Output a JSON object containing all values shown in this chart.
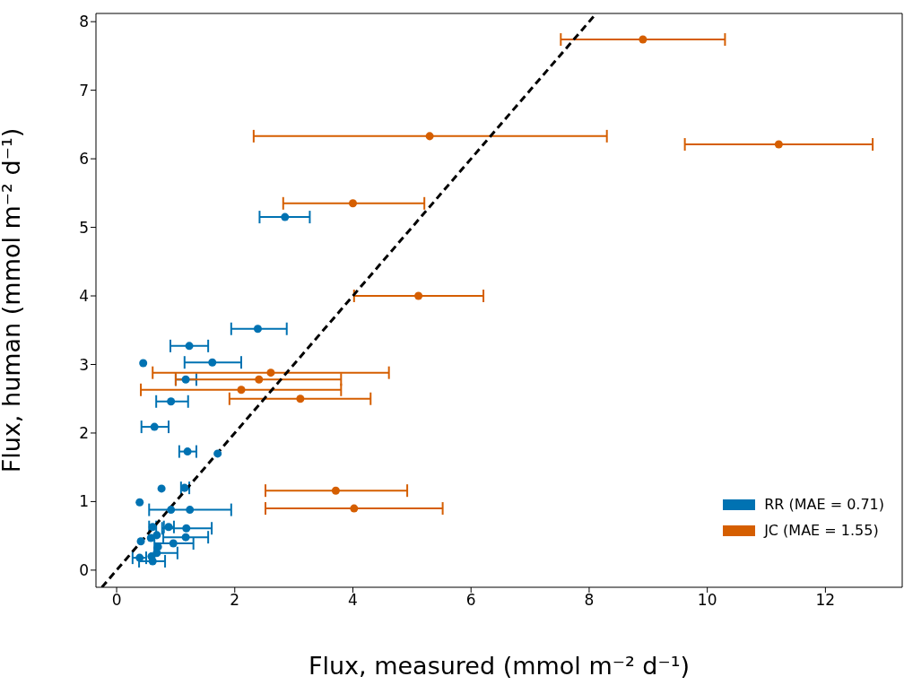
{
  "chart_data": {
    "type": "scatter",
    "xlabel": "Flux, measured (mmol m⁻² d⁻¹)",
    "ylabel": "Flux, human (mmol m⁻² d⁻¹)",
    "xlim": [
      -0.35,
      13.3
    ],
    "ylim": [
      -0.25,
      8.12
    ],
    "xticks": [
      0,
      2,
      4,
      6,
      8,
      10,
      12
    ],
    "yticks": [
      0,
      1,
      2,
      3,
      4,
      5,
      6,
      7,
      8
    ],
    "legend": "bottom right",
    "marker": "circle",
    "series": [
      {
        "name": "RR (MAE = 0.71)",
        "color": "#0072b2",
        "x": [
          2.85,
          2.39,
          1.23,
          0.45,
          1.62,
          1.17,
          0.92,
          0.64,
          1.2,
          1.71,
          0.76,
          1.15,
          0.39,
          0.92,
          1.24,
          0.61,
          0.88,
          1.18,
          1.17,
          0.68,
          0.41,
          0.58,
          0.96,
          0.7,
          0.68,
          0.39,
          0.59,
          0.61
        ],
        "values": [
          5.15,
          3.52,
          3.27,
          3.02,
          3.03,
          2.78,
          2.46,
          2.09,
          1.73,
          1.7,
          1.19,
          1.2,
          0.99,
          0.88,
          0.88,
          0.63,
          0.63,
          0.61,
          0.48,
          0.51,
          0.42,
          0.47,
          0.39,
          0.34,
          0.25,
          0.18,
          0.2,
          0.13
        ],
        "xerrors": [
          [
            2.42,
            3.27
          ],
          [
            1.94,
            2.88
          ],
          [
            0.91,
            1.55
          ],
          null,
          [
            1.15,
            2.11
          ],
          [
            1.0,
            1.35
          ],
          [
            0.67,
            1.21
          ],
          [
            0.42,
            0.88
          ],
          [
            1.06,
            1.35
          ],
          null,
          null,
          [
            1.09,
            1.23
          ],
          null,
          null,
          [
            0.55,
            1.94
          ],
          [
            0.55,
            0.67
          ],
          [
            0.8,
            0.97
          ],
          [
            0.77,
            1.61
          ],
          [
            0.79,
            1.55
          ],
          null,
          null,
          null,
          [
            0.64,
            1.3
          ],
          null,
          [
            0.64,
            1.03
          ],
          [
            0.27,
            0.5
          ],
          null,
          [
            0.38,
            0.82
          ]
        ]
      },
      {
        "name": "JC (MAE = 1.55)",
        "color": "#d55e00",
        "x": [
          8.91,
          5.3,
          11.21,
          4.0,
          5.11,
          2.61,
          2.41,
          2.11,
          3.11,
          3.71,
          4.02
        ],
        "values": [
          7.74,
          6.33,
          6.21,
          5.35,
          4.0,
          2.88,
          2.78,
          2.63,
          2.5,
          1.16,
          0.9
        ],
        "xerrors": [
          [
            7.52,
            10.3
          ],
          [
            2.32,
            8.3
          ],
          [
            9.62,
            12.8
          ],
          [
            2.82,
            5.21
          ],
          [
            4.02,
            6.21
          ],
          [
            0.61,
            4.61
          ],
          [
            1.0,
            3.8
          ],
          [
            0.41,
            3.8
          ],
          [
            1.91,
            4.3
          ],
          [
            2.52,
            4.92
          ],
          [
            2.52,
            5.52
          ]
        ]
      },
      {
        "type": "line",
        "color": "#000000",
        "line_style": "dashed",
        "marker": "none",
        "x": [
          -0.25,
          8.12
        ],
        "values": [
          -0.25,
          8.12
        ]
      }
    ]
  }
}
